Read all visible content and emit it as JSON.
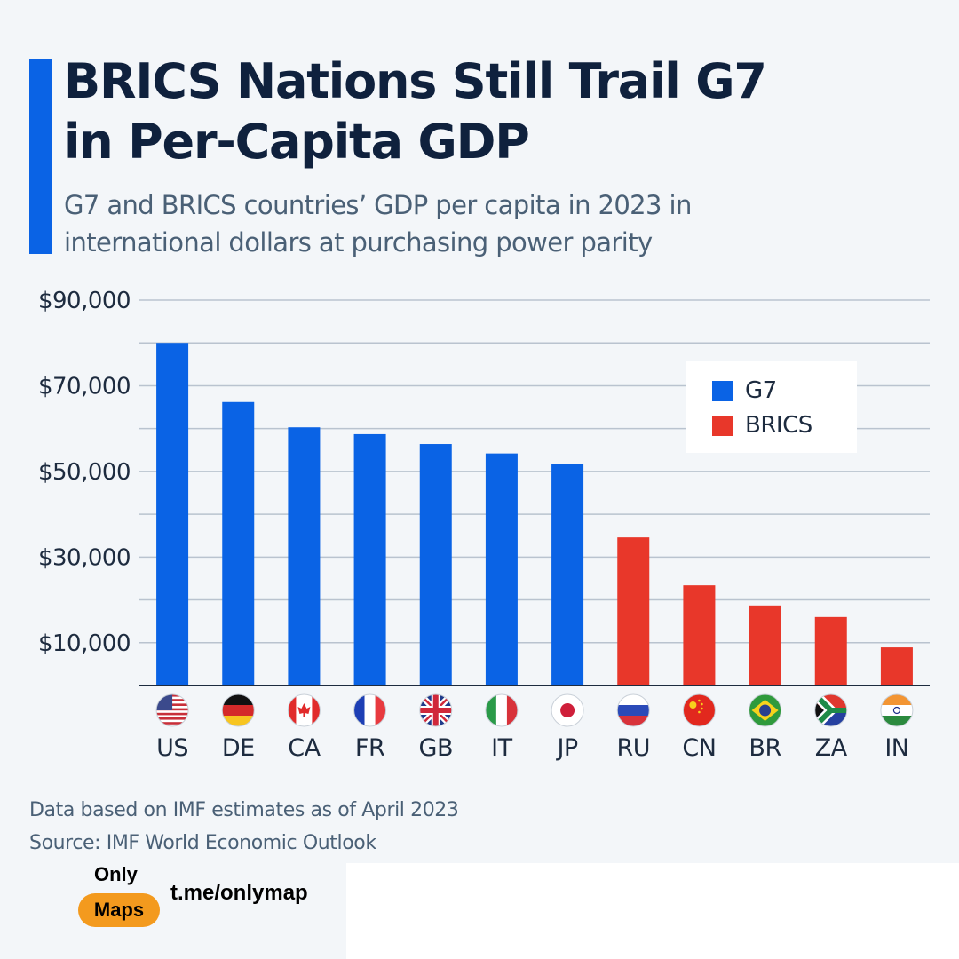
{
  "header": {
    "title_line1": "BRICS Nations Still Trail G7",
    "title_line2": "in Per-Capita GDP",
    "subtitle_line1": "G7 and BRICS countries’ GDP per capita in 2023 in",
    "subtitle_line2": "international dollars at purchasing power parity"
  },
  "colors": {
    "accent": "#0a63e5",
    "g7": "#0a63e5",
    "brics": "#e8372a",
    "text_dark": "#0f213d",
    "text_muted": "#4a6076",
    "gridline": "#b9c3cf",
    "axis": "#1d2b3f",
    "brand_orange": "#f39a1e"
  },
  "chart_data": {
    "type": "bar",
    "title": "BRICS Nations Still Trail G7 in Per-Capita GDP",
    "subtitle": "G7 and BRICS countries’ GDP per capita in 2023 in international dollars at purchasing power parity",
    "xlabel": "",
    "ylabel": "",
    "ylim": [
      0,
      90000
    ],
    "yticks": [
      10000,
      30000,
      50000,
      70000,
      90000
    ],
    "ytick_labels": [
      "$10,000",
      "$30,000",
      "$50,000",
      "$70,000",
      "$90,000"
    ],
    "minor_gridlines": [
      20000,
      40000,
      60000,
      80000
    ],
    "grid": true,
    "categories": [
      "US",
      "DE",
      "CA",
      "FR",
      "GB",
      "IT",
      "JP",
      "RU",
      "CN",
      "BR",
      "ZA",
      "IN"
    ],
    "flags": [
      "us-flag",
      "de-flag",
      "ca-flag",
      "fr-flag",
      "gb-flag",
      "it-flag",
      "jp-flag",
      "ru-flag",
      "cn-flag",
      "br-flag",
      "za-flag",
      "in-flag"
    ],
    "groups": [
      "G7",
      "G7",
      "G7",
      "G7",
      "G7",
      "G7",
      "G7",
      "BRICS",
      "BRICS",
      "BRICS",
      "BRICS",
      "BRICS"
    ],
    "values": [
      80000,
      66200,
      60300,
      58700,
      56400,
      54200,
      51800,
      34600,
      23400,
      18700,
      16000,
      8900
    ],
    "series": [
      {
        "name": "G7",
        "color": "#0a63e5",
        "categories": [
          "US",
          "DE",
          "CA",
          "FR",
          "GB",
          "IT",
          "JP"
        ],
        "values": [
          80000,
          66200,
          60300,
          58700,
          56400,
          54200,
          51800
        ]
      },
      {
        "name": "BRICS",
        "color": "#e8372a",
        "categories": [
          "RU",
          "CN",
          "BR",
          "ZA",
          "IN"
        ],
        "values": [
          34600,
          23400,
          18700,
          16000,
          8900
        ]
      }
    ],
    "legend": {
      "placement": "top-right",
      "entries": [
        "G7",
        "BRICS"
      ]
    }
  },
  "legend": {
    "items": [
      {
        "label": "G7",
        "color": "#0a63e5"
      },
      {
        "label": "BRICS",
        "color": "#e8372a"
      }
    ]
  },
  "footer": {
    "note": "Data based on IMF estimates as of April 2023",
    "source": "Source: IMF World Economic Outlook"
  },
  "branding": {
    "only": "Only",
    "maps": "Maps",
    "url": "t.me/onlymap"
  }
}
